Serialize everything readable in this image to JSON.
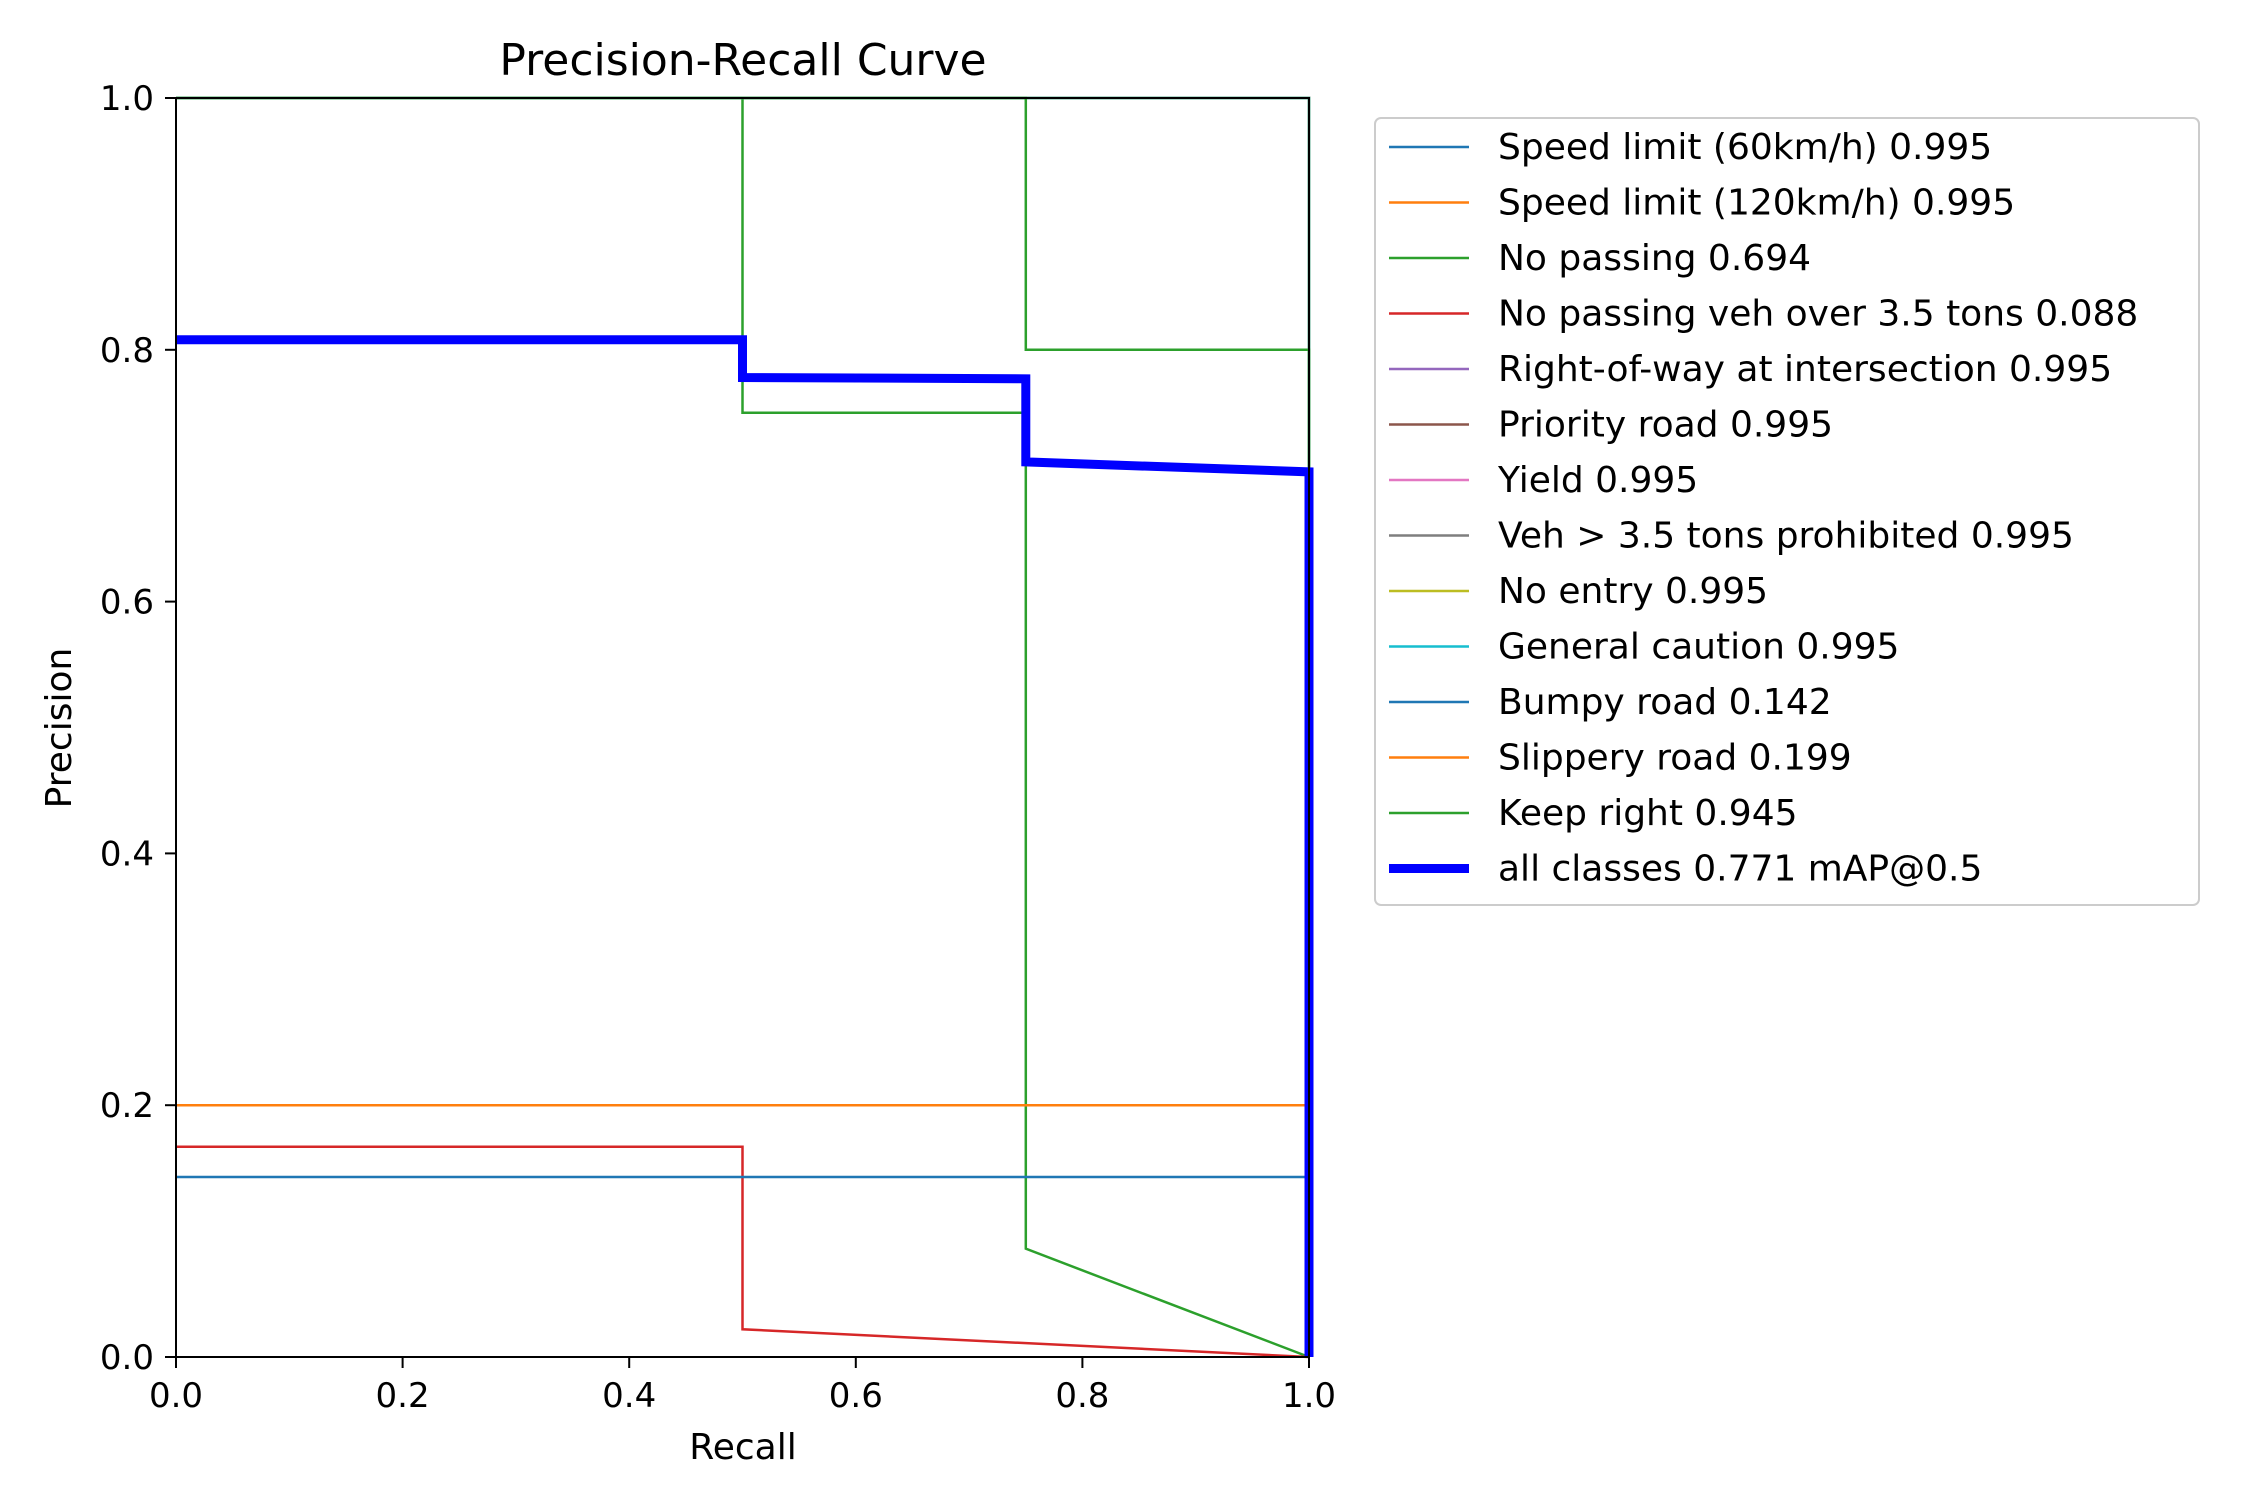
{
  "chart_data": {
    "type": "line",
    "title": "Precision-Recall Curve",
    "xlabel": "Recall",
    "ylabel": "Precision",
    "xlim": [
      0,
      1
    ],
    "ylim": [
      0,
      1
    ],
    "xticks": [
      "0.0",
      "0.2",
      "0.4",
      "0.6",
      "0.8",
      "1.0"
    ],
    "yticks": [
      "0.0",
      "0.2",
      "0.4",
      "0.6",
      "0.8",
      "1.0"
    ],
    "grid": false,
    "legend_position": "outside-right",
    "series": [
      {
        "name": "Speed limit (60km/h) 0.995",
        "color": "#1f77b4",
        "emphasis": false,
        "x": [
          0,
          1,
          1
        ],
        "y": [
          1,
          1,
          0
        ]
      },
      {
        "name": "Speed limit (120km/h) 0.995",
        "color": "#ff7f0e",
        "emphasis": false,
        "x": [
          0,
          1,
          1
        ],
        "y": [
          1,
          1,
          0
        ]
      },
      {
        "name": "No passing 0.694",
        "color": "#2ca02c",
        "emphasis": false,
        "x": [
          0,
          0.5,
          0.5,
          0.75,
          0.75,
          1,
          1
        ],
        "y": [
          1,
          1,
          0.75,
          0.75,
          0.086,
          0,
          0
        ]
      },
      {
        "name": "No passing veh over 3.5 tons 0.088",
        "color": "#d62728",
        "emphasis": false,
        "x": [
          0,
          0.5,
          0.5,
          1
        ],
        "y": [
          0.167,
          0.167,
          0.022,
          0
        ]
      },
      {
        "name": "Right-of-way at intersection 0.995",
        "color": "#9467bd",
        "emphasis": false,
        "x": [
          0,
          1,
          1
        ],
        "y": [
          1,
          1,
          0
        ]
      },
      {
        "name": "Priority road 0.995",
        "color": "#8c564b",
        "emphasis": false,
        "x": [
          0,
          1,
          1
        ],
        "y": [
          1,
          1,
          0
        ]
      },
      {
        "name": "Yield 0.995",
        "color": "#e377c2",
        "emphasis": false,
        "x": [
          0,
          1,
          1
        ],
        "y": [
          1,
          1,
          0
        ]
      },
      {
        "name": "Veh > 3.5 tons prohibited 0.995",
        "color": "#7f7f7f",
        "emphasis": false,
        "x": [
          0,
          1,
          1
        ],
        "y": [
          1,
          1,
          0
        ]
      },
      {
        "name": "No entry 0.995",
        "color": "#bcbd22",
        "emphasis": false,
        "x": [
          0,
          1,
          1
        ],
        "y": [
          1,
          1,
          0
        ]
      },
      {
        "name": "General caution 0.995",
        "color": "#17becf",
        "emphasis": false,
        "x": [
          0,
          1,
          1
        ],
        "y": [
          1,
          1,
          0
        ]
      },
      {
        "name": "Bumpy road 0.142",
        "color": "#1f77b4",
        "emphasis": false,
        "x": [
          0,
          1,
          1
        ],
        "y": [
          0.143,
          0.143,
          0
        ]
      },
      {
        "name": "Slippery road 0.199",
        "color": "#ff7f0e",
        "emphasis": false,
        "x": [
          0,
          1,
          1
        ],
        "y": [
          0.2,
          0.2,
          0
        ]
      },
      {
        "name": "Keep right 0.945",
        "color": "#2ca02c",
        "emphasis": false,
        "x": [
          0,
          0.75,
          0.75,
          1,
          1
        ],
        "y": [
          1,
          1,
          0.8,
          0.8,
          0
        ]
      },
      {
        "name": "all classes 0.771 mAP@0.5",
        "color": "#0000ff",
        "emphasis": true,
        "x": [
          0,
          0.5,
          0.5,
          0.75,
          0.75,
          1,
          1
        ],
        "y": [
          0.808,
          0.808,
          0.778,
          0.777,
          0.711,
          0.703,
          0
        ]
      }
    ]
  }
}
